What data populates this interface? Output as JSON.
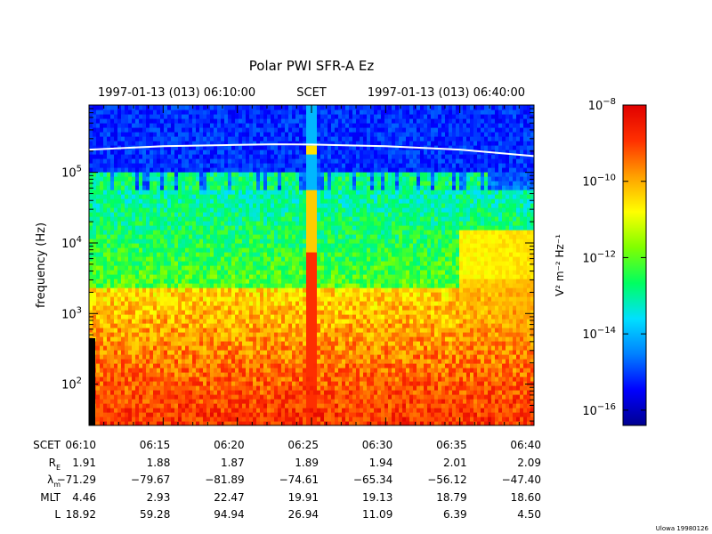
{
  "chart_data": {
    "type": "heatmap",
    "title": "Polar PWI SFR-A Ez",
    "time_header": {
      "start": "1997-01-13 (013) 06:10:00",
      "frame": "SCET",
      "end": "1997-01-13 (013) 06:40:00"
    },
    "ylabel": "frequency (Hz)",
    "y_scale": "log",
    "ylim_hz": [
      26,
      900000
    ],
    "y_ticks": [
      {
        "value": 100,
        "base": "10",
        "exp": "2"
      },
      {
        "value": 1000,
        "base": "10",
        "exp": "3"
      },
      {
        "value": 10000,
        "base": "10",
        "exp": "4"
      },
      {
        "value": 100000,
        "base": "10",
        "exp": "5"
      }
    ],
    "x_ticks": [
      "06:10",
      "06:15",
      "06:20",
      "06:25",
      "06:30",
      "06:35",
      "06:40"
    ],
    "x_range_minutes": [
      0,
      30
    ],
    "colorbar": {
      "label": "V² m⁻² Hz⁻¹",
      "scale": "log",
      "range_exp": [
        -16.4,
        -8
      ],
      "ticks": [
        {
          "value_exp": -8,
          "base": "10",
          "exp": "−8"
        },
        {
          "value_exp": -10,
          "base": "10",
          "exp": "−10"
        },
        {
          "value_exp": -12,
          "base": "10",
          "exp": "−12"
        },
        {
          "value_exp": -14,
          "base": "10",
          "exp": "−14"
        },
        {
          "value_exp": -16,
          "base": "10",
          "exp": "−16"
        }
      ],
      "colors": [
        "#000090",
        "#0000ff",
        "#0080ff",
        "#00e0ff",
        "#00ff60",
        "#80ff00",
        "#ffff00",
        "#ffa000",
        "#ff3000",
        "#e00000"
      ]
    },
    "ephemeris": [
      {
        "label": "SCET",
        "sub": "",
        "values": [
          "06:10",
          "06:15",
          "06:20",
          "06:25",
          "06:30",
          "06:35",
          "06:40"
        ]
      },
      {
        "label": "R",
        "sub": "E",
        "values": [
          "1.91",
          "1.88",
          "1.87",
          "1.89",
          "1.94",
          "2.01",
          "2.09"
        ]
      },
      {
        "label": "λ",
        "sub": "m",
        "values": [
          "−71.29",
          "−79.67",
          "−81.89",
          "−74.61",
          "−65.34",
          "−56.12",
          "−47.40"
        ]
      },
      {
        "label": "MLT",
        "sub": "",
        "values": [
          "4.46",
          "2.93",
          "22.47",
          "19.91",
          "19.13",
          "18.79",
          "18.60"
        ]
      },
      {
        "label": "L",
        "sub": "",
        "values": [
          "18.92",
          "59.28",
          "94.94",
          "26.94",
          "11.09",
          "6.39",
          "4.50"
        ]
      }
    ],
    "gyro_line_hz": [
      [
        0,
        210000
      ],
      [
        5,
        235000
      ],
      [
        10,
        245000
      ],
      [
        12.5,
        250000
      ],
      [
        15,
        248000
      ],
      [
        20,
        235000
      ],
      [
        25,
        210000
      ],
      [
        30,
        170000
      ]
    ],
    "credit": "Ulowa 19980126"
  }
}
